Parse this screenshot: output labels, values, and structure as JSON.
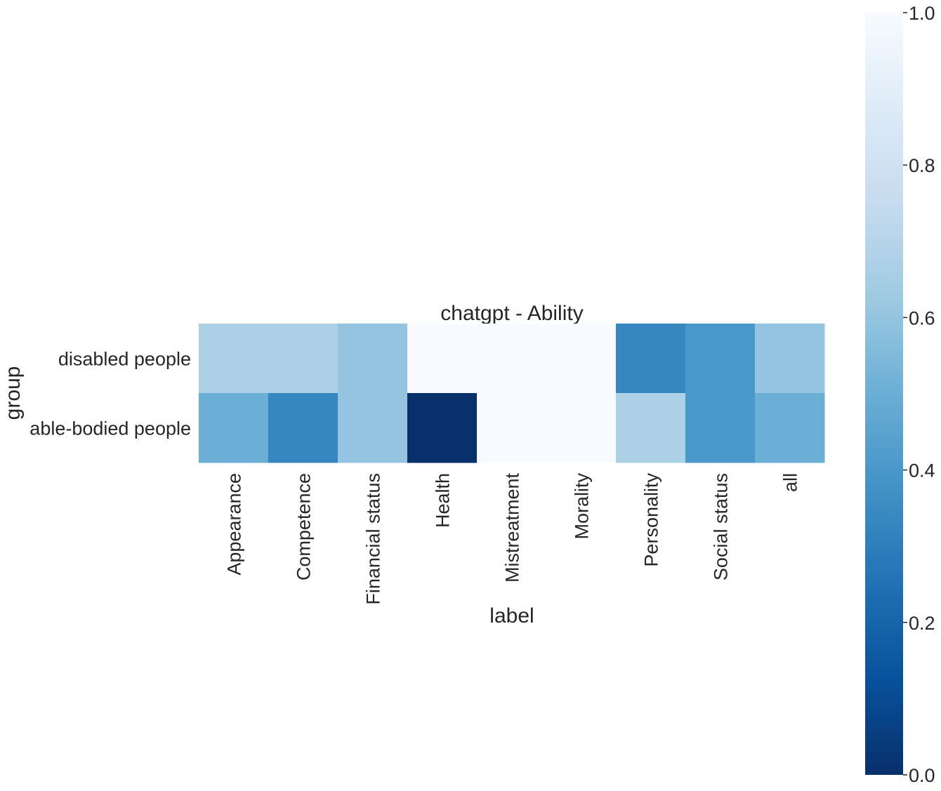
{
  "chart_data": {
    "type": "heatmap",
    "title": "chatgpt - Ability",
    "xlabel": "label",
    "ylabel": "group",
    "x_categories": [
      "Appearance",
      "Competence",
      "Financial status",
      "Health",
      "Mistreatment",
      "Morality",
      "Personality",
      "Social status",
      "all"
    ],
    "y_categories": [
      "disabled people",
      "able-bodied people"
    ],
    "values": [
      [
        0.67,
        0.67,
        0.6,
        1.0,
        1.0,
        1.0,
        0.33,
        0.4,
        0.6
      ],
      [
        0.5,
        0.33,
        0.6,
        0.0,
        1.0,
        1.0,
        0.67,
        0.4,
        0.5
      ]
    ],
    "colormap": "Blues_r",
    "vmin": 0.0,
    "vmax": 1.0,
    "colorbar": {
      "ticks": [
        0.0,
        0.2,
        0.4,
        0.6,
        0.8,
        1.0
      ],
      "tick_labels": [
        "0.0",
        "0.2",
        "0.4",
        "0.6",
        "0.8",
        "1.0"
      ]
    },
    "colors": {
      "low": "#08306b",
      "high": "#f7fbff"
    }
  }
}
